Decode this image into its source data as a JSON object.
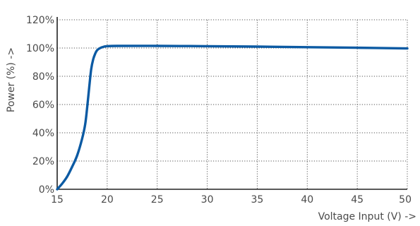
{
  "chart_data": {
    "type": "line",
    "title": "",
    "xlabel": "Voltage Input (V) ->",
    "ylabel": "Power (%) ->",
    "xlim": [
      15,
      50
    ],
    "ylim": [
      0,
      120
    ],
    "x_ticks": [
      15,
      20,
      25,
      30,
      35,
      40,
      45,
      50
    ],
    "x_tick_labels": [
      "15",
      "20",
      "25",
      "30",
      "35",
      "40",
      "45",
      "50"
    ],
    "y_ticks": [
      0,
      20,
      40,
      60,
      80,
      100,
      120
    ],
    "y_tick_labels": [
      "0%",
      "20%",
      "40%",
      "60%",
      "80%",
      "100%",
      "120%"
    ],
    "grid": true,
    "grid_style": "dotted",
    "legend": "none",
    "series": [
      {
        "color": "#0b5aa3",
        "points": [
          [
            15.0,
            0
          ],
          [
            15.5,
            4
          ],
          [
            16.0,
            9
          ],
          [
            16.5,
            16
          ],
          [
            17.0,
            24
          ],
          [
            17.5,
            36
          ],
          [
            17.8,
            46
          ],
          [
            18.0,
            58
          ],
          [
            18.2,
            72
          ],
          [
            18.4,
            85
          ],
          [
            18.6,
            92
          ],
          [
            18.8,
            96
          ],
          [
            19.0,
            98.5
          ],
          [
            19.3,
            100
          ],
          [
            19.7,
            101
          ],
          [
            20.0,
            101.3
          ],
          [
            21.0,
            101.5
          ],
          [
            25.0,
            101.5
          ],
          [
            30.0,
            101.3
          ],
          [
            35.0,
            101
          ],
          [
            40.0,
            100.6
          ],
          [
            45.0,
            100.2
          ],
          [
            50.0,
            99.7
          ]
        ]
      }
    ]
  },
  "colors": {
    "series": "#0b5aa3",
    "axis": "#222222",
    "grid": "#555555",
    "text": "#4a4a4a"
  }
}
